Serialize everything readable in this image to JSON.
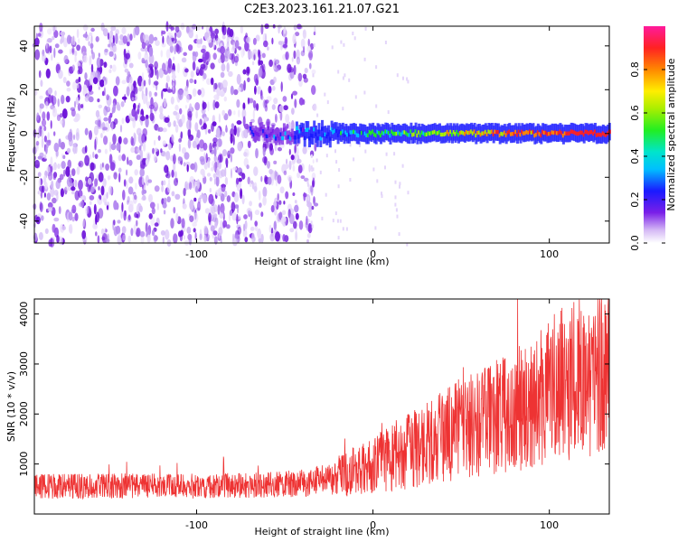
{
  "title": "C2E3.2023.161.21.07.G21",
  "chart_data": [
    {
      "type": "heatmap",
      "xlabel": "Height of straight line (km)",
      "ylabel": "Frequency (Hz)",
      "xlim": [
        -192,
        134
      ],
      "ylim": [
        -50,
        49
      ],
      "xticks": [
        -100,
        0,
        100
      ],
      "yticks": [
        -40,
        -20,
        0,
        20,
        40
      ],
      "colorbar": {
        "label": "Normalized spectral amplitude",
        "range": [
          0,
          1
        ],
        "ticks": [
          0.0,
          0.2,
          0.4,
          0.6,
          0.8
        ]
      },
      "description_values": {
        "dominant_frequency_hz": 0,
        "signal_band_start_km": -60,
        "noise_region_end_km": -45
      }
    },
    {
      "type": "line",
      "xlabel": "Height of straight line (km)",
      "ylabel": "SNR (10 * v/v)",
      "xlim": [
        -192,
        134
      ],
      "ylim": [
        0,
        4300
      ],
      "xticks": [
        -100,
        0,
        100
      ],
      "yticks": [
        1000,
        2000,
        3000,
        4000
      ],
      "color": "#ee3333",
      "trend": {
        "x": [
          -192,
          -150,
          -100,
          -60,
          -40,
          -20,
          0,
          20,
          40,
          60,
          80,
          100,
          120,
          134
        ],
        "y": [
          550,
          560,
          560,
          580,
          620,
          720,
          980,
          1250,
          1550,
          1800,
          2050,
          2500,
          2750,
          2900
        ]
      }
    }
  ]
}
